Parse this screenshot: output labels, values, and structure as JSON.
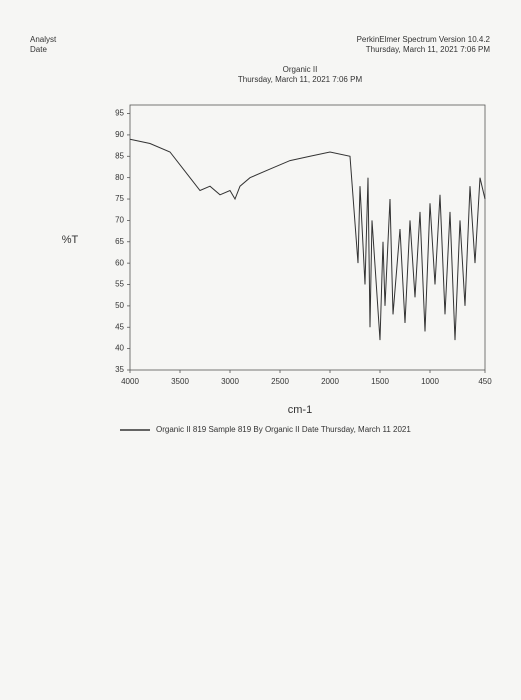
{
  "header": {
    "software": "PerkinElmer Spectrum Version 10.4.2",
    "software_date": "Thursday, March 11, 2021 7:06 PM",
    "analyst": "Analyst",
    "date": "Date"
  },
  "chart_data": {
    "type": "line",
    "title": "Organic II",
    "subtitle": "Thursday, March 11, 2021 7:06 PM",
    "xlabel": "cm-1",
    "ylabel": "%T",
    "x": [
      4000,
      3800,
      3600,
      3400,
      3300,
      3200,
      3100,
      3000,
      2950,
      2900,
      2800,
      2600,
      2400,
      2200,
      2000,
      1800,
      1720,
      1700,
      1650,
      1620,
      1600,
      1580,
      1500,
      1470,
      1450,
      1400,
      1370,
      1300,
      1250,
      1200,
      1150,
      1100,
      1050,
      1000,
      950,
      900,
      850,
      800,
      750,
      700,
      650,
      600,
      550,
      500,
      450
    ],
    "series": [
      {
        "name": "Organic II 819   Sample 819 By Organic II Date Thursday, March 11 2021",
        "color": "#333333",
        "values": [
          89,
          88,
          86,
          80,
          77,
          78,
          76,
          77,
          75,
          78,
          80,
          82,
          84,
          85,
          86,
          85,
          60,
          78,
          55,
          80,
          45,
          70,
          42,
          65,
          50,
          75,
          48,
          68,
          46,
          70,
          52,
          72,
          44,
          74,
          55,
          76,
          48,
          72,
          42,
          70,
          50,
          78,
          60,
          80,
          75
        ]
      }
    ],
    "xlim": [
      4000,
      450
    ],
    "ylim": [
      35,
      97
    ],
    "xticks": [
      4000,
      3500,
      3000,
      2500,
      2000,
      1500,
      1000,
      450
    ],
    "yticks": [
      35,
      40,
      45,
      50,
      55,
      60,
      65,
      70,
      75,
      80,
      85,
      90,
      95
    ]
  }
}
